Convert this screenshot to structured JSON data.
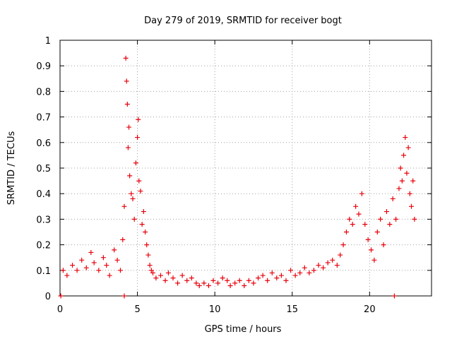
{
  "chart_data": {
    "type": "scatter",
    "title": "Day 279 of 2019, SRMTID for receiver bogt",
    "xlabel": "GPS time / hours",
    "ylabel": "SRMTID / TECUs",
    "xlim": [
      0,
      24
    ],
    "ylim": [
      0,
      1
    ],
    "x_ticks": [
      0,
      5,
      10,
      15,
      20
    ],
    "x_tick_labels": [
      "0",
      "5",
      "10",
      "15",
      "20"
    ],
    "y_ticks": [
      0,
      0.1,
      0.2,
      0.3,
      0.4,
      0.5,
      0.6,
      0.7,
      0.8,
      0.9,
      1
    ],
    "y_tick_labels": [
      "0",
      "0.1",
      "0.2",
      "0.3",
      "0.4",
      "0.5",
      "0.6",
      "0.7",
      "0.8",
      "0.9",
      "1"
    ],
    "grid": true,
    "marker": "+",
    "color": "#e8000b",
    "series": [
      {
        "name": "SRMTID",
        "x": [
          0.05,
          4.15,
          21.6,
          0.2,
          0.45,
          0.8,
          1.1,
          1.4,
          1.7,
          2.0,
          2.2,
          2.5,
          2.8,
          3.0,
          3.2,
          3.5,
          3.7,
          3.9,
          4.05,
          4.15,
          4.25,
          4.3,
          4.35,
          4.4,
          4.45,
          4.5,
          4.6,
          4.7,
          4.8,
          4.9,
          5.0,
          5.05,
          5.1,
          5.2,
          5.3,
          5.4,
          5.5,
          5.6,
          5.7,
          5.8,
          5.9,
          6.0,
          6.2,
          6.5,
          6.8,
          7.0,
          7.3,
          7.6,
          7.9,
          8.2,
          8.5,
          8.8,
          9.0,
          9.3,
          9.6,
          9.9,
          10.2,
          10.5,
          10.8,
          11.0,
          11.3,
          11.6,
          11.9,
          12.2,
          12.5,
          12.8,
          13.1,
          13.4,
          13.7,
          14.0,
          14.3,
          14.6,
          14.9,
          15.2,
          15.5,
          15.8,
          16.1,
          16.4,
          16.7,
          17.0,
          17.3,
          17.6,
          17.9,
          18.1,
          18.3,
          18.5,
          18.7,
          18.9,
          19.1,
          19.3,
          19.5,
          19.7,
          19.9,
          20.1,
          20.3,
          20.5,
          20.7,
          20.9,
          21.1,
          21.3,
          21.5,
          21.7,
          21.9,
          22.0,
          22.1,
          22.2,
          22.3,
          22.4,
          22.5,
          22.6,
          22.7,
          22.8,
          22.9
        ],
        "y": [
          0.0,
          0.0,
          0.0,
          0.1,
          0.08,
          0.12,
          0.1,
          0.14,
          0.11,
          0.17,
          0.13,
          0.1,
          0.15,
          0.12,
          0.08,
          0.18,
          0.14,
          0.1,
          0.22,
          0.35,
          0.93,
          0.84,
          0.75,
          0.58,
          0.66,
          0.47,
          0.4,
          0.38,
          0.3,
          0.52,
          0.62,
          0.69,
          0.45,
          0.41,
          0.28,
          0.33,
          0.25,
          0.2,
          0.16,
          0.12,
          0.1,
          0.09,
          0.07,
          0.08,
          0.06,
          0.09,
          0.07,
          0.05,
          0.08,
          0.06,
          0.07,
          0.05,
          0.04,
          0.05,
          0.04,
          0.06,
          0.05,
          0.07,
          0.06,
          0.04,
          0.05,
          0.06,
          0.04,
          0.06,
          0.05,
          0.07,
          0.08,
          0.06,
          0.09,
          0.07,
          0.08,
          0.06,
          0.1,
          0.08,
          0.09,
          0.11,
          0.09,
          0.1,
          0.12,
          0.11,
          0.13,
          0.14,
          0.12,
          0.16,
          0.2,
          0.25,
          0.3,
          0.28,
          0.35,
          0.32,
          0.4,
          0.28,
          0.22,
          0.18,
          0.14,
          0.25,
          0.3,
          0.2,
          0.33,
          0.28,
          0.38,
          0.3,
          0.42,
          0.5,
          0.45,
          0.55,
          0.62,
          0.48,
          0.58,
          0.4,
          0.35,
          0.45,
          0.3
        ]
      }
    ]
  }
}
